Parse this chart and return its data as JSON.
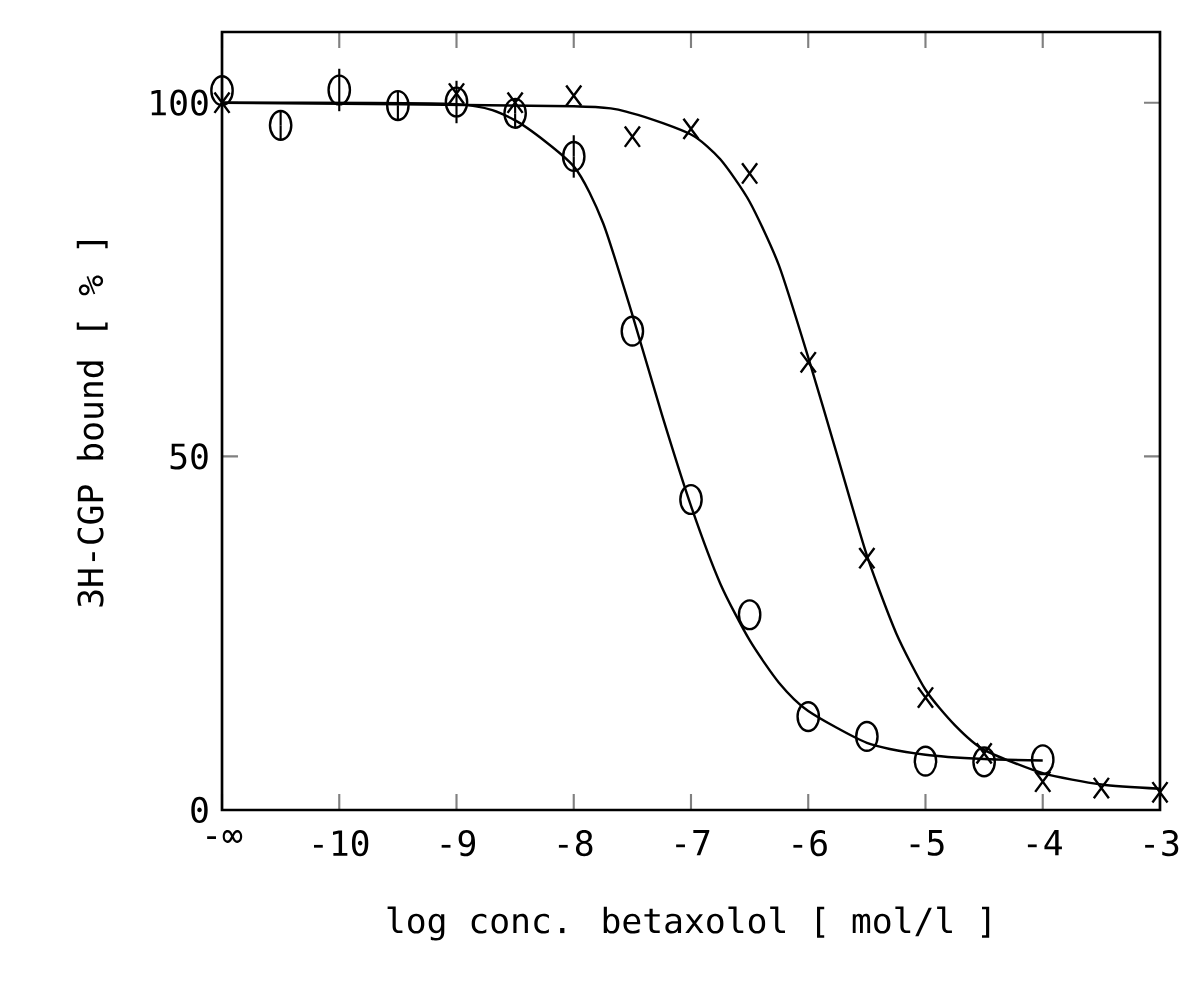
{
  "chart_data": {
    "type": "scatter",
    "xlabel": "log conc. betaxolol  [ mol/l ]",
    "ylabel": "3H-CGP bound  [ % ]",
    "xlim": [
      -11,
      -3
    ],
    "ylim": [
      0,
      110
    ],
    "xticks": [
      {
        "value": -11,
        "label": "-∞"
      },
      -10,
      -9,
      -8,
      -7,
      -6,
      -5,
      -4,
      -3
    ],
    "yticks": [
      0,
      50,
      100
    ],
    "series": [
      {
        "marker": "circle",
        "color": "#000000",
        "x": [
          -11,
          -10.5,
          -10,
          -9.5,
          -9,
          -8.5,
          -8,
          -7.5,
          -7,
          -6.5,
          -6,
          -5.5,
          -5,
          -4.5,
          -4
        ],
        "values": [
          101.7,
          96.8,
          101.8,
          99.6,
          100.1,
          98.5,
          92.4,
          67.7,
          43.9,
          27.6,
          13.2,
          10.4,
          6.9,
          6.8,
          7.1
        ],
        "errors": [
          2,
          2,
          3,
          2,
          3,
          2,
          3,
          null,
          null,
          null,
          null,
          null,
          null,
          null,
          null
        ]
      },
      {
        "marker": "cross",
        "color": "#000000",
        "x": [
          -11,
          -9,
          -8.5,
          -8,
          -7.5,
          -7,
          -6.5,
          -6,
          -5.5,
          -5,
          -4.5,
          -4,
          -3.5,
          -3
        ],
        "values": [
          100,
          101.3,
          100,
          101,
          95.2,
          96.3,
          90,
          63.3,
          35.6,
          15.9,
          8.0,
          4.0,
          3.1,
          2.5
        ]
      },
      {
        "type": "line",
        "color": "#000000",
        "x": [
          -11,
          -9,
          -8.5,
          -8,
          -7.75,
          -7.5,
          -7.25,
          -7,
          -6.75,
          -6.5,
          -6.25,
          -6,
          -5.5,
          -5,
          -4.5,
          -4
        ],
        "values": [
          100,
          99.8,
          97.5,
          91,
          83,
          70,
          56,
          43,
          32,
          24,
          18,
          14,
          9.5,
          7.8,
          7.2,
          7
        ]
      },
      {
        "type": "line",
        "color": "#000000",
        "x": [
          -11,
          -8,
          -7.5,
          -7,
          -6.75,
          -6.5,
          -6.25,
          -6,
          -5.75,
          -5.5,
          -5.25,
          -5,
          -4.75,
          -4.5,
          -4,
          -3.5,
          -3
        ],
        "values": [
          100,
          99.5,
          98.5,
          95.5,
          92,
          86,
          77,
          64,
          50,
          36,
          25,
          17,
          12,
          8.5,
          5.2,
          3.6,
          3
        ]
      }
    ]
  }
}
